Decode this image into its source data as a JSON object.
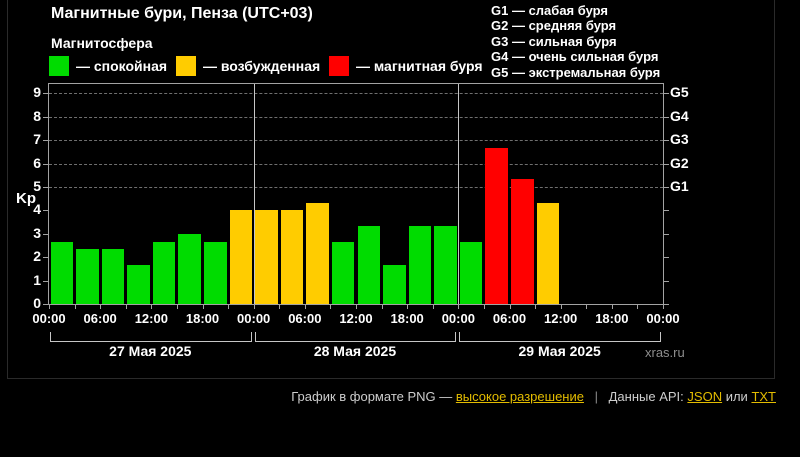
{
  "title": "Магнитные бури, Пенза (UTC+03)",
  "subtitle": "Магнитосфера",
  "colors": {
    "quiet": "#00dc00",
    "excited": "#ffcc00",
    "storm": "#ff0000",
    "link": "#e3bc00"
  },
  "legend": [
    {
      "level": "quiet",
      "label": "— спокойная"
    },
    {
      "level": "excited",
      "label": "— возбужденная"
    },
    {
      "level": "storm",
      "label": "— магнитная буря"
    }
  ],
  "storm_scale": [
    {
      "code": "G1",
      "label": "G1 — слабая буря"
    },
    {
      "code": "G2",
      "label": "G2 — средняя буря"
    },
    {
      "code": "G3",
      "label": "G3 — сильная буря"
    },
    {
      "code": "G4",
      "label": "G4 — очень сильная буря"
    },
    {
      "code": "G5",
      "label": "G5 — экстремальная буря"
    }
  ],
  "watermark": "xras.ru",
  "footer": {
    "text_png": "График в формате PNG —",
    "link_hires": "высокое разрешение",
    "separator": "|",
    "text_api": "Данные API:",
    "link_json": "JSON",
    "text_or": "или",
    "link_txt": "TXT"
  },
  "chart_data": {
    "type": "bar",
    "title": "Магнитные бури, Пенза (UTC+03)",
    "xlabel": "",
    "ylabel": "Kp",
    "ylim": [
      0,
      9.4
    ],
    "yticks": [
      0,
      1,
      2,
      3,
      4,
      5,
      6,
      7,
      8,
      9
    ],
    "gridlines_kp": [
      5,
      6,
      7,
      8,
      9
    ],
    "grid": "horizontal dashed at Kp 5..9",
    "legend_position": "top",
    "interval_hours": 3,
    "g_axis": [
      {
        "kp": 5,
        "label": "G1"
      },
      {
        "kp": 6,
        "label": "G2"
      },
      {
        "kp": 7,
        "label": "G3"
      },
      {
        "kp": 8,
        "label": "G4"
      },
      {
        "kp": 9,
        "label": "G5"
      }
    ],
    "time_tick_labels": [
      "00:00",
      "06:00",
      "12:00",
      "18:00",
      "00:00",
      "06:00",
      "12:00",
      "18:00",
      "00:00",
      "06:00",
      "12:00",
      "18:00",
      "00:00"
    ],
    "days": [
      {
        "date": "27 Мая 2025",
        "bars": [
          {
            "time": "00:00",
            "kp": 2.67,
            "level": "quiet"
          },
          {
            "time": "03:00",
            "kp": 2.33,
            "level": "quiet"
          },
          {
            "time": "06:00",
            "kp": 2.33,
            "level": "quiet"
          },
          {
            "time": "09:00",
            "kp": 1.67,
            "level": "quiet"
          },
          {
            "time": "12:00",
            "kp": 2.67,
            "level": "quiet"
          },
          {
            "time": "15:00",
            "kp": 3.0,
            "level": "quiet"
          },
          {
            "time": "18:00",
            "kp": 2.67,
            "level": "quiet"
          },
          {
            "time": "21:00",
            "kp": 4.0,
            "level": "excited"
          }
        ]
      },
      {
        "date": "28 Мая 2025",
        "bars": [
          {
            "time": "00:00",
            "kp": 4.0,
            "level": "excited"
          },
          {
            "time": "03:00",
            "kp": 4.0,
            "level": "excited"
          },
          {
            "time": "06:00",
            "kp": 4.33,
            "level": "excited"
          },
          {
            "time": "09:00",
            "kp": 2.67,
            "level": "quiet"
          },
          {
            "time": "12:00",
            "kp": 3.33,
            "level": "quiet"
          },
          {
            "time": "15:00",
            "kp": 1.67,
            "level": "quiet"
          },
          {
            "time": "18:00",
            "kp": 3.33,
            "level": "quiet"
          },
          {
            "time": "21:00",
            "kp": 3.33,
            "level": "quiet"
          }
        ]
      },
      {
        "date": "29 Мая 2025",
        "bars": [
          {
            "time": "00:00",
            "kp": 2.67,
            "level": "quiet"
          },
          {
            "time": "03:00",
            "kp": 6.67,
            "level": "storm"
          },
          {
            "time": "06:00",
            "kp": 5.33,
            "level": "storm"
          },
          {
            "time": "09:00",
            "kp": 4.33,
            "level": "excited"
          }
        ]
      }
    ]
  }
}
